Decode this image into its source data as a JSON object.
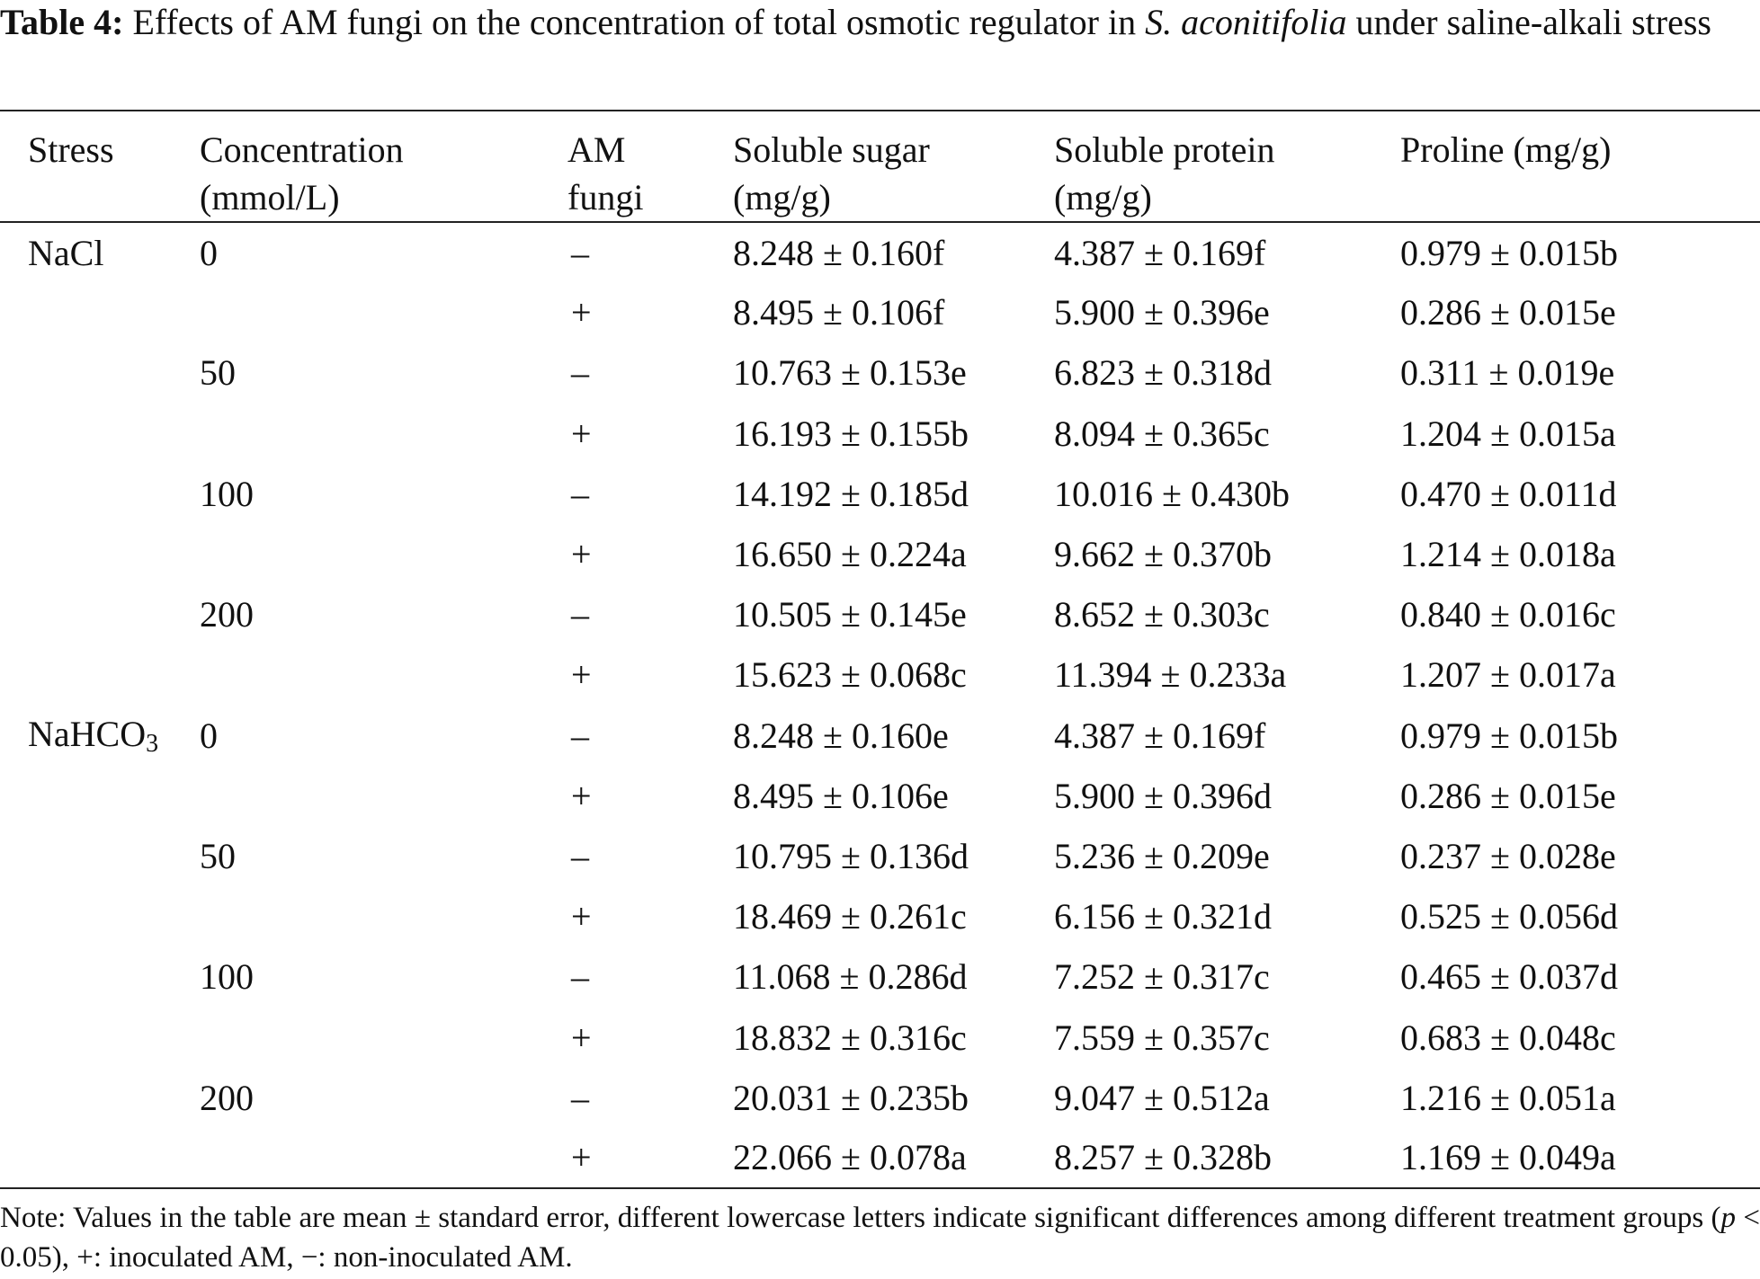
{
  "caption": {
    "label": "Table 4:",
    "text_before": "Effects of AM fungi on the concentration of total osmotic regulator in ",
    "species": "S. aconitifolia",
    "text_after": " under saline-alkali stress"
  },
  "table": {
    "header": [
      [
        "Stress"
      ],
      [
        "Concentration",
        "(mmol/L)"
      ],
      [
        "AM",
        "fungi"
      ],
      [
        "Soluble sugar",
        "(mg/g)"
      ],
      [
        "Soluble protein",
        "(mg/g)"
      ],
      [
        "Proline (mg/g)"
      ]
    ],
    "groups": [
      {
        "stress": {
          "text": "NaCl"
        },
        "levels": [
          {
            "concentration": "0",
            "rows": [
              [
                "–",
                "8.248 ± 0.160f",
                "4.387 ± 0.169f",
                "0.979 ± 0.015b"
              ],
              [
                "+",
                "8.495 ± 0.106f",
                "5.900 ± 0.396e",
                "0.286 ± 0.015e"
              ]
            ]
          },
          {
            "concentration": "50",
            "rows": [
              [
                "–",
                "10.763 ± 0.153e",
                "6.823 ± 0.318d",
                "0.311 ± 0.019e"
              ],
              [
                "+",
                "16.193 ± 0.155b",
                "8.094 ± 0.365c",
                "1.204 ± 0.015a"
              ]
            ]
          },
          {
            "concentration": "100",
            "rows": [
              [
                "–",
                "14.192 ± 0.185d",
                "10.016 ± 0.430b",
                "0.470 ± 0.011d"
              ],
              [
                "+",
                "16.650 ± 0.224a",
                "9.662 ± 0.370b",
                "1.214 ± 0.018a"
              ]
            ]
          },
          {
            "concentration": "200",
            "rows": [
              [
                "–",
                "10.505 ± 0.145e",
                "8.652 ± 0.303c",
                "0.840 ± 0.016c"
              ],
              [
                "+",
                "15.623 ± 0.068c",
                "11.394 ± 0.233a",
                "1.207 ± 0.017a"
              ]
            ]
          }
        ]
      },
      {
        "stress": {
          "text": "NaHCO",
          "sub": "3"
        },
        "levels": [
          {
            "concentration": "0",
            "rows": [
              [
                "–",
                "8.248 ± 0.160e",
                "4.387 ± 0.169f",
                "0.979 ± 0.015b"
              ],
              [
                "+",
                "8.495 ± 0.106e",
                "5.900 ± 0.396d",
                "0.286 ± 0.015e"
              ]
            ]
          },
          {
            "concentration": "50",
            "rows": [
              [
                "–",
                "10.795 ± 0.136d",
                "5.236 ± 0.209e",
                "0.237 ± 0.028e"
              ],
              [
                "+",
                "18.469 ± 0.261c",
                "6.156 ± 0.321d",
                "0.525 ± 0.056d"
              ]
            ]
          },
          {
            "concentration": "100",
            "rows": [
              [
                "–",
                "11.068 ± 0.286d",
                "7.252 ± 0.317c",
                "0.465 ± 0.037d"
              ],
              [
                "+",
                "18.832 ± 0.316c",
                "7.559 ± 0.357c",
                "0.683 ± 0.048c"
              ]
            ]
          },
          {
            "concentration": "200",
            "rows": [
              [
                "–",
                "20.031 ± 0.235b",
                "9.047 ± 0.512a",
                "1.216 ± 0.051a"
              ],
              [
                "+",
                "22.066 ± 0.078a",
                "8.257 ± 0.328b",
                "1.169 ± 0.049a"
              ]
            ]
          }
        ]
      }
    ]
  },
  "note": {
    "before": "Note: Values in the table are mean ± standard error, different lowercase letters indicate significant differences among different treatment groups (",
    "italic": "p",
    "after": " < 0.05), +: inoculated AM, −: non-inoculated AM."
  }
}
